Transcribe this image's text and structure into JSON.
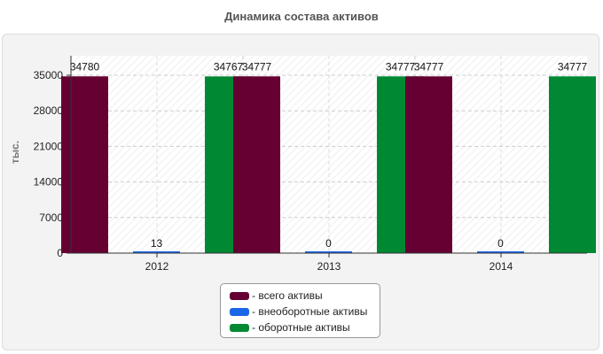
{
  "chart_data": {
    "type": "bar",
    "title": "Динамика состава активов",
    "ylabel": "тыс.",
    "xlabel": "",
    "categories": [
      "2012",
      "2013",
      "2014"
    ],
    "series": [
      {
        "name": "всего активы",
        "color": "#660033",
        "values": [
          34780,
          34777,
          34777
        ],
        "labels": [
          "34780",
          "34777",
          "34777"
        ]
      },
      {
        "name": "внеоборотные активы",
        "color": "#1a66e6",
        "values": [
          13,
          0,
          0
        ],
        "labels": [
          "13",
          "0",
          "0"
        ]
      },
      {
        "name": "оборотные активы",
        "color": "#008833",
        "values": [
          34767,
          34777,
          34777
        ],
        "labels": [
          "34767",
          "34777",
          "34777"
        ]
      }
    ],
    "ylim": [
      0,
      35000
    ],
    "yticks": [
      0,
      7000,
      14000,
      21000,
      28000,
      35000
    ],
    "grid": true,
    "legend_position": "bottom"
  },
  "legend": {
    "items": [
      {
        "prefix": "- ",
        "label": "всего активы"
      },
      {
        "prefix": "- ",
        "label": "внеоборотные активы"
      },
      {
        "prefix": "- ",
        "label": "оборотные активы"
      }
    ]
  }
}
